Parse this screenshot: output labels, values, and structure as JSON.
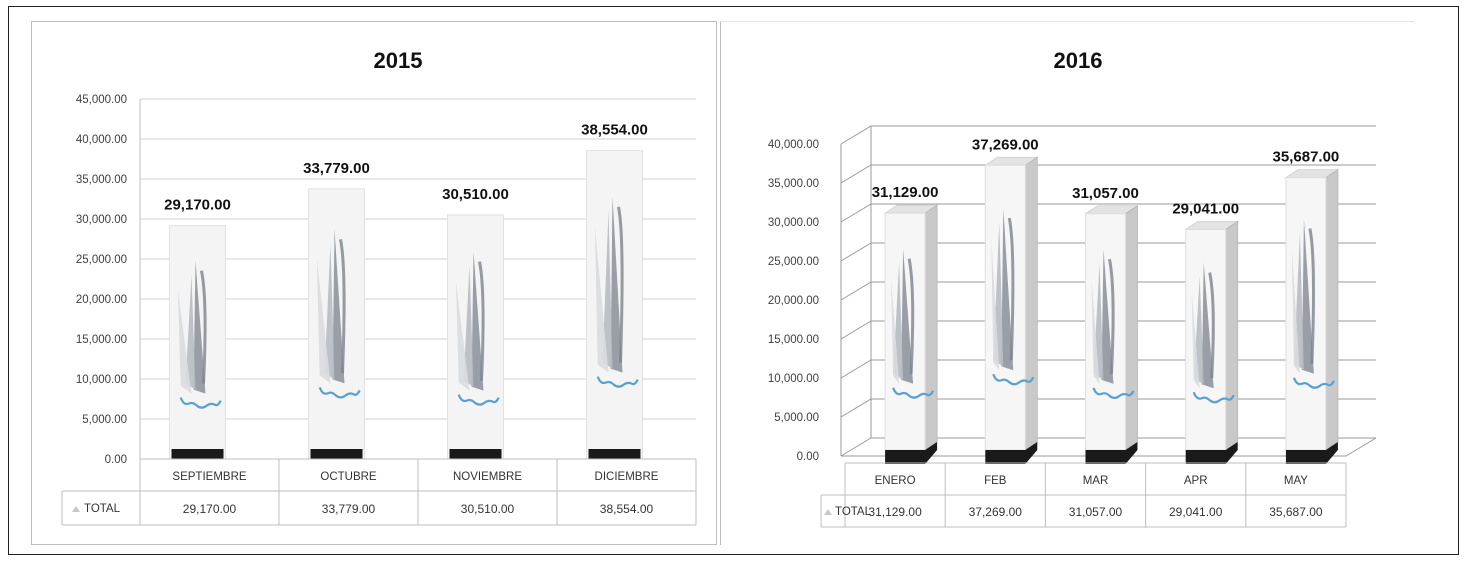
{
  "chart_data": [
    {
      "type": "bar",
      "title": "2015",
      "categories": [
        "SEPTIEMBRE",
        "OCTUBRE",
        "NOVIEMBRE",
        "DICIEMBRE"
      ],
      "series": [
        {
          "name": "TOTAL",
          "values": [
            29170,
            33779,
            30510,
            38554
          ]
        }
      ],
      "data_labels": [
        "29,170.00",
        "33,779.00",
        "30,510.00",
        "38,554.00"
      ],
      "table_values": [
        "29,170.00",
        "33,779.00",
        "30,510.00",
        "38,554.00"
      ],
      "y_ticks": [
        "0.00",
        "5,000.00",
        "10,000.00",
        "15,000.00",
        "20,000.00",
        "25,000.00",
        "30,000.00",
        "35,000.00",
        "40,000.00",
        "45,000.00"
      ],
      "ylim": [
        0,
        45000
      ],
      "grid": true,
      "data_table": true,
      "colors": {
        "bar": "#f4f4f4",
        "base": "#1a1a1a",
        "accent": "#5aa0cf",
        "grid": "#d0d0d0"
      }
    },
    {
      "type": "bar",
      "title": "2016",
      "categories": [
        "ENERO",
        "FEB",
        "MAR",
        "APR",
        "MAY"
      ],
      "series": [
        {
          "name": "TOTAL",
          "values": [
            31129,
            37269,
            31057,
            29041,
            35687
          ]
        }
      ],
      "data_labels": [
        "31,129.00",
        "37,269.00",
        "31,057.00",
        "29,041.00",
        "35,687.00"
      ],
      "table_values": [
        "31,129.00",
        "37,269.00",
        "31,057.00",
        "29,041.00",
        "35,687.00"
      ],
      "y_ticks": [
        "0.00",
        "5,000.00",
        "10,000.00",
        "15,000.00",
        "20,000.00",
        "25,000.00",
        "30,000.00",
        "35,000.00",
        "40,000.00"
      ],
      "ylim": [
        0,
        40000
      ],
      "grid": true,
      "three_d": true,
      "data_table": true,
      "colors": {
        "bar": "#f6f6f6",
        "bar_side": "#c9c9c9",
        "base": "#1a1a1a",
        "accent": "#5aa0cf",
        "grid": "#9a9a9a"
      }
    }
  ]
}
